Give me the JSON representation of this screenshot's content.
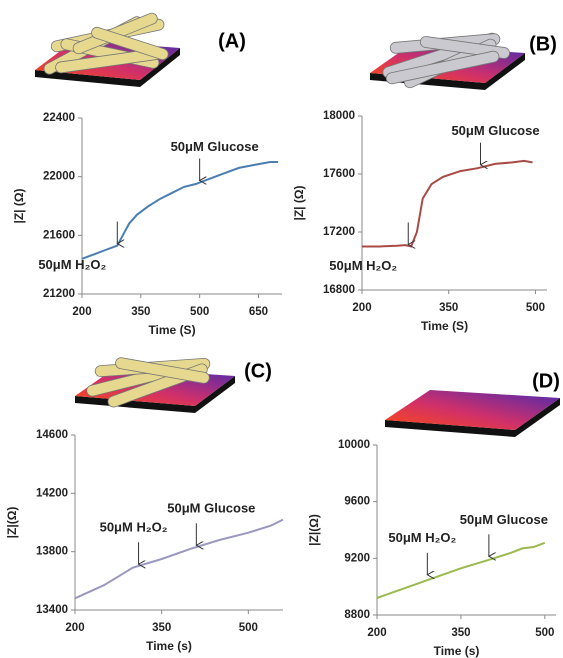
{
  "chart_data": [
    {
      "type": "line",
      "label": "(A)",
      "xlabel": "Time (S)",
      "ylabel": "|Z| (Ω)",
      "color": "#4a7eb0",
      "x": [
        200,
        230,
        260,
        280,
        290,
        300,
        320,
        340,
        370,
        400,
        430,
        460,
        490,
        520,
        560,
        600,
        640,
        680,
        700
      ],
      "values": [
        21440,
        21470,
        21500,
        21520,
        21530,
        21580,
        21680,
        21740,
        21800,
        21850,
        21890,
        21930,
        21950,
        21980,
        22020,
        22060,
        22080,
        22100,
        22100
      ],
      "xlim": [
        200,
        710
      ],
      "xticks": [
        200,
        350,
        500,
        650
      ],
      "ylim": [
        21200,
        22400
      ],
      "yticks": [
        21200,
        21600,
        22000,
        22400
      ],
      "annotations": [
        {
          "text": "50μM Glucose",
          "x": 500,
          "y": 21960
        },
        {
          "text": "50μM H₂O₂",
          "x": 290,
          "y": 21530
        }
      ]
    },
    {
      "type": "line",
      "label": "(B)",
      "xlabel": "Time (S)",
      "ylabel": "|Z| (Ω)",
      "color": "#a84a45",
      "x": [
        200,
        230,
        260,
        275,
        285,
        295,
        305,
        320,
        340,
        370,
        400,
        430,
        460,
        480,
        495
      ],
      "values": [
        17100,
        17100,
        17105,
        17110,
        17100,
        17200,
        17430,
        17530,
        17580,
        17620,
        17640,
        17670,
        17680,
        17690,
        17680
      ],
      "xlim": [
        200,
        520
      ],
      "xticks": [
        200,
        350,
        500
      ],
      "ylim": [
        16800,
        18000
      ],
      "yticks": [
        16800,
        17200,
        17600,
        18000
      ],
      "annotations": [
        {
          "text": "50μM Glucose",
          "x": 405,
          "y": 17650
        },
        {
          "text": "50μM H₂O₂",
          "x": 280,
          "y": 17100
        }
      ]
    },
    {
      "type": "line",
      "label": "(C)",
      "xlabel": "Time (s)",
      "ylabel": "|Z|(Ω)",
      "color": "#9a98c0",
      "x": [
        200,
        250,
        300,
        350,
        400,
        450,
        500,
        540,
        560
      ],
      "values": [
        13480,
        13570,
        13690,
        13750,
        13820,
        13880,
        13930,
        13980,
        14020
      ],
      "xlim": [
        200,
        560
      ],
      "xticks": [
        200,
        350,
        500
      ],
      "ylim": [
        13400,
        14600
      ],
      "yticks": [
        13400,
        13800,
        14200,
        14600
      ],
      "annotations": [
        {
          "text": "50μM Glucose",
          "x": 410,
          "y": 13830
        },
        {
          "text": "50μM H₂O₂",
          "x": 310,
          "y": 13700
        }
      ]
    },
    {
      "type": "line",
      "label": "(D)",
      "xlabel": "Time (s)",
      "ylabel": "|Z|(Ω)",
      "color": "#9ab94f",
      "x": [
        200,
        250,
        300,
        350,
        400,
        440,
        460,
        480,
        500
      ],
      "values": [
        8920,
        8990,
        9060,
        9130,
        9190,
        9240,
        9270,
        9280,
        9310
      ],
      "xlim": [
        200,
        520
      ],
      "xticks": [
        200,
        350,
        500
      ],
      "ylim": [
        8800,
        10000
      ],
      "yticks": [
        8800,
        9200,
        9600,
        10000
      ],
      "annotations": [
        {
          "text": "50μM Glucose",
          "x": 400,
          "y": 9200
        },
        {
          "text": "50μM H₂O₂",
          "x": 290,
          "y": 9070
        }
      ]
    }
  ]
}
